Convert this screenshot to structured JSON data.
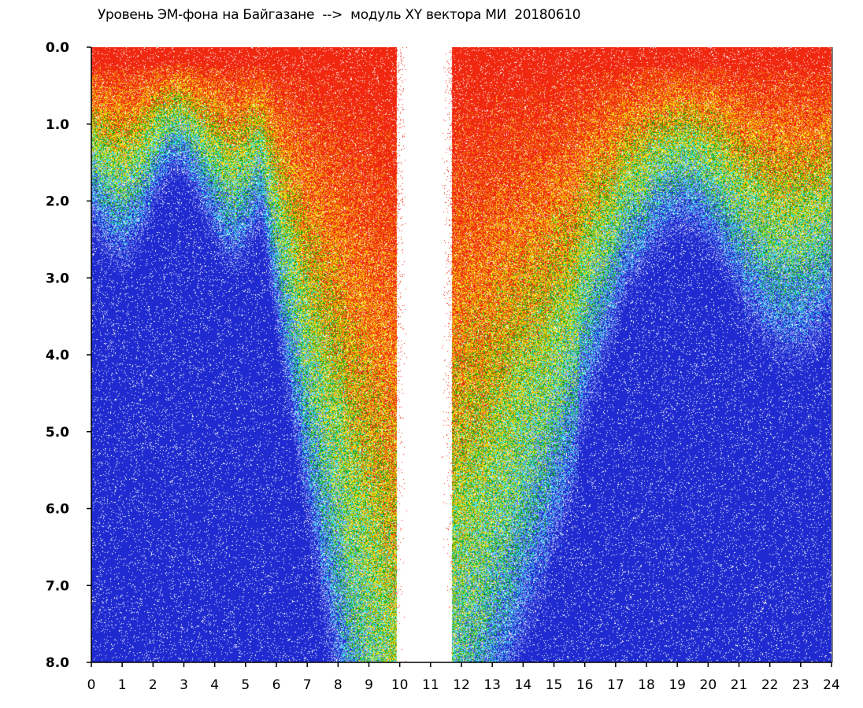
{
  "chart_data": {
    "type": "heatmap",
    "title": "Уровень ЭМ-фона на Байгазане  -->  модуль XY вектора МИ  20180610",
    "xlabel": "",
    "ylabel": "",
    "xlim": [
      0,
      24
    ],
    "ylim": [
      0,
      8
    ],
    "y_inverted": true,
    "grid": false,
    "legend": "none",
    "x_ticks": [
      "0",
      "1",
      "2",
      "3",
      "4",
      "5",
      "6",
      "7",
      "8",
      "9",
      "10",
      "11",
      "12",
      "13",
      "14",
      "15",
      "16",
      "17",
      "18",
      "19",
      "20",
      "21",
      "22",
      "23",
      "24"
    ],
    "y_ticks": [
      "0.0",
      "1.0",
      "2.0",
      "3.0",
      "4.0",
      "5.0",
      "6.0",
      "7.0",
      "8.0"
    ],
    "color_scale": [
      "#1f2bd0",
      "#7f8fef",
      "#38e3ee",
      "#0ea50e",
      "#f4e80c",
      "#f5a00a",
      "#f02810"
    ],
    "gap_hours": [
      9.9,
      11.7
    ],
    "high_activity_bands": [
      {
        "from_hour": 6.0,
        "to_hour": 9.9
      },
      {
        "from_hour": 11.7,
        "to_hour": 15.8
      },
      {
        "from_hour": 17.5,
        "to_hour": 24.0
      }
    ]
  }
}
